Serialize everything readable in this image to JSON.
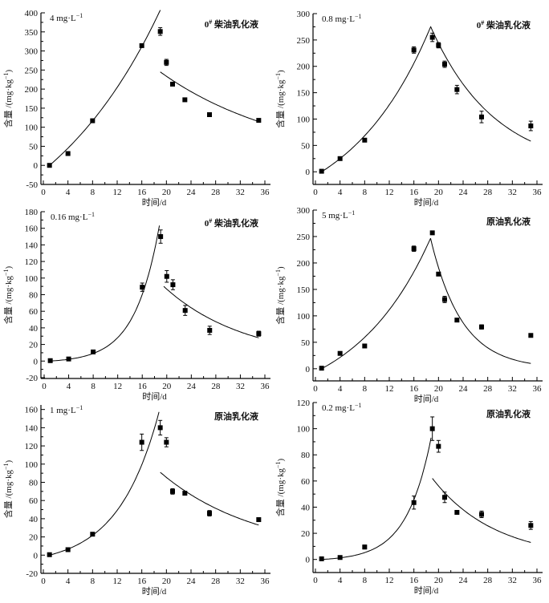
{
  "chart_data": [
    {
      "type": "scatter",
      "concentration": "4 mg·L",
      "concentration_exp": "−1",
      "emulsion": "0",
      "emulsion_sup": "#",
      "emulsion_name": " 柴油乳化液",
      "xlabel": "时间/d",
      "ylabel": "含量 /(mg·kg",
      "ylabel_exp": "−1",
      "ylabel_end": ")",
      "xlim": [
        0,
        36
      ],
      "xticks": [
        0,
        4,
        8,
        12,
        16,
        20,
        24,
        28,
        32,
        36
      ],
      "ylim": [
        -50,
        400
      ],
      "yticks": [
        -50,
        0,
        50,
        100,
        150,
        200,
        250,
        300,
        350,
        400
      ],
      "points": [
        {
          "x": 1,
          "y": 0,
          "err": 0
        },
        {
          "x": 4,
          "y": 31,
          "err": 0
        },
        {
          "x": 8,
          "y": 117,
          "err": 0
        },
        {
          "x": 16,
          "y": 314,
          "err": 0
        },
        {
          "x": 19,
          "y": 351,
          "err": 10
        },
        {
          "x": 20,
          "y": 270,
          "err": 8
        },
        {
          "x": 21,
          "y": 213,
          "err": 0
        },
        {
          "x": 23,
          "y": 172,
          "err": 0
        },
        {
          "x": 27,
          "y": 133,
          "err": 5
        },
        {
          "x": 35,
          "y": 118,
          "err": 0
        }
      ],
      "fit_uptake": {
        "a": 279,
        "k": 0.05,
        "t0": 1,
        "t_end": 19
      },
      "fit_depuration": {
        "c0": 245,
        "k": 0.0473,
        "t0": 19,
        "t_end": 35
      }
    },
    {
      "type": "scatter",
      "concentration": "0.8 mg·L",
      "concentration_exp": "−1",
      "emulsion": "0",
      "emulsion_sup": "#",
      "emulsion_name": " 柴油乳化液",
      "xlabel": "时间/d",
      "ylabel": "含量 /(mg·kg",
      "ylabel_exp": "−1",
      "ylabel_end": ")",
      "xlim": [
        0,
        36
      ],
      "xticks": [
        0,
        4,
        8,
        12,
        16,
        20,
        24,
        28,
        32,
        36
      ],
      "ylim": [
        -24,
        300
      ],
      "yticks": [
        0,
        50,
        100,
        150,
        200,
        250,
        300
      ],
      "points": [
        {
          "x": 1,
          "y": 1,
          "err": 0
        },
        {
          "x": 4,
          "y": 25,
          "err": 0
        },
        {
          "x": 8,
          "y": 60,
          "err": 0
        },
        {
          "x": 16,
          "y": 231,
          "err": 6
        },
        {
          "x": 19,
          "y": 255,
          "err": 8
        },
        {
          "x": 20,
          "y": 240,
          "err": 5
        },
        {
          "x": 21,
          "y": 204,
          "err": 6
        },
        {
          "x": 23,
          "y": 156,
          "err": 8
        },
        {
          "x": 27,
          "y": 104,
          "err": 11
        },
        {
          "x": 35,
          "y": 87,
          "err": 9
        }
      ],
      "fit_uptake": {
        "a": 99,
        "k": 0.075,
        "t0": 1,
        "t_end": 18.7
      },
      "fit_depuration": {
        "c0": 276,
        "k": 0.0957,
        "t0": 18.7,
        "t_end": 35
      }
    },
    {
      "type": "scatter",
      "concentration": "0.16 mg·L",
      "concentration_exp": "−1",
      "emulsion": "0",
      "emulsion_sup": "#",
      "emulsion_name": " 柴油乳化液",
      "xlabel": "时间/d",
      "ylabel": "含量 /(mg·kg",
      "ylabel_exp": "−1",
      "ylabel_end": ")",
      "xlim": [
        0,
        36
      ],
      "xticks": [
        0,
        4,
        8,
        12,
        16,
        20,
        24,
        28,
        32,
        36
      ],
      "ylim": [
        -21,
        180
      ],
      "yticks": [
        -20,
        0,
        20,
        40,
        60,
        80,
        100,
        120,
        140,
        160,
        180
      ],
      "points": [
        {
          "x": 1,
          "y": 0.5,
          "err": 0
        },
        {
          "x": 4,
          "y": 2.5,
          "err": 0
        },
        {
          "x": 8,
          "y": 11,
          "err": 0
        },
        {
          "x": 16,
          "y": 89,
          "err": 5
        },
        {
          "x": 19,
          "y": 150,
          "err": 8
        },
        {
          "x": 20,
          "y": 102,
          "err": 7
        },
        {
          "x": 21,
          "y": 92,
          "err": 6
        },
        {
          "x": 23,
          "y": 61,
          "err": 6
        },
        {
          "x": 27,
          "y": 37,
          "err": 5
        },
        {
          "x": 35,
          "y": 33,
          "err": 3
        }
      ],
      "fit_uptake": {
        "a": 1.93,
        "k": 0.25,
        "t0": 1,
        "t_end": 18.8
      },
      "fit_depuration": {
        "c0": 90,
        "k": 0.0753,
        "t0": 19.5,
        "t_end": 35
      }
    },
    {
      "type": "scatter",
      "concentration": "5 mg·L",
      "concentration_exp": "−1",
      "emulsion": "",
      "emulsion_sup": "",
      "emulsion_name": "原油乳化液",
      "xlabel": "时间/d",
      "ylabel": "含量 /(mg·kg",
      "ylabel_exp": "−1",
      "ylabel_end": ")",
      "xlim": [
        0,
        36
      ],
      "xticks": [
        0,
        4,
        8,
        12,
        16,
        20,
        24,
        28,
        32,
        36
      ],
      "ylim": [
        -23,
        300
      ],
      "yticks": [
        0,
        50,
        100,
        150,
        200,
        250,
        300
      ],
      "points": [
        {
          "x": 1,
          "y": 1,
          "err": 0
        },
        {
          "x": 4,
          "y": 29,
          "err": 0
        },
        {
          "x": 8,
          "y": 43,
          "err": 0
        },
        {
          "x": 16,
          "y": 227,
          "err": 5
        },
        {
          "x": 19,
          "y": 257,
          "err": 0
        },
        {
          "x": 20,
          "y": 179,
          "err": 0
        },
        {
          "x": 21,
          "y": 131,
          "err": 6
        },
        {
          "x": 23,
          "y": 92,
          "err": 0
        },
        {
          "x": 27,
          "y": 79,
          "err": 4
        },
        {
          "x": 35,
          "y": 63,
          "err": 0
        }
      ],
      "fit_uptake": {
        "a": 79,
        "k": 0.08,
        "t0": 1,
        "t_end": 18.7
      },
      "fit_depuration": {
        "c0": 247,
        "k": 0.197,
        "t0": 18.7,
        "t_end": 35
      }
    },
    {
      "type": "scatter",
      "concentration": "1 mg·L",
      "concentration_exp": "−1",
      "emulsion": "",
      "emulsion_sup": "",
      "emulsion_name": "原油乳化液",
      "xlabel": "时间/d",
      "ylabel": "含量 /(mg·kg",
      "ylabel_exp": "−1",
      "ylabel_end": ")",
      "xlim": [
        0,
        36
      ],
      "xticks": [
        0,
        4,
        8,
        12,
        16,
        20,
        24,
        28,
        32,
        36
      ],
      "ylim": [
        -20,
        165
      ],
      "yticks": [
        -20,
        0,
        20,
        40,
        60,
        80,
        100,
        120,
        140,
        160
      ],
      "points": [
        {
          "x": 1,
          "y": 0.5,
          "err": 0
        },
        {
          "x": 4,
          "y": 6,
          "err": 0
        },
        {
          "x": 8,
          "y": 23,
          "err": 0
        },
        {
          "x": 16,
          "y": 124,
          "err": 9
        },
        {
          "x": 19,
          "y": 140,
          "err": 8
        },
        {
          "x": 20,
          "y": 124,
          "err": 5
        },
        {
          "x": 21,
          "y": 70,
          "err": 3
        },
        {
          "x": 23,
          "y": 68,
          "err": 0
        },
        {
          "x": 27,
          "y": 46,
          "err": 3
        },
        {
          "x": 35,
          "y": 39,
          "err": 0
        }
      ],
      "fit_uptake": {
        "a": 11.7,
        "k": 0.15,
        "t0": 1,
        "t_end": 18.8
      },
      "fit_depuration": {
        "c0": 91,
        "k": 0.0634,
        "t0": 19,
        "t_end": 35
      }
    },
    {
      "type": "scatter",
      "concentration": "0.2 mg·L",
      "concentration_exp": "−1",
      "emulsion": "",
      "emulsion_sup": "",
      "emulsion_name": "原油乳化液",
      "xlabel": "时间/d",
      "ylabel": "含量 /(mg·kg",
      "ylabel_exp": "−1",
      "ylabel_end": ")",
      "xlim": [
        0,
        36
      ],
      "xticks": [
        0,
        4,
        8,
        12,
        16,
        20,
        24,
        28,
        32,
        36
      ],
      "ylim": [
        -10,
        120
      ],
      "yticks": [
        0,
        20,
        40,
        60,
        80,
        100,
        120
      ],
      "points": [
        {
          "x": 1,
          "y": 0.5,
          "err": 0
        },
        {
          "x": 4,
          "y": 1.5,
          "err": 0
        },
        {
          "x": 8,
          "y": 9.5,
          "err": 1.5
        },
        {
          "x": 16,
          "y": 43.5,
          "err": 5
        },
        {
          "x": 19,
          "y": 100,
          "err": 9
        },
        {
          "x": 20,
          "y": 86.5,
          "err": 4.5
        },
        {
          "x": 21,
          "y": 47.5,
          "err": 4
        },
        {
          "x": 23,
          "y": 36,
          "err": 0
        },
        {
          "x": 27,
          "y": 34.5,
          "err": 2.5
        },
        {
          "x": 35,
          "y": 26,
          "err": 3
        }
      ],
      "fit_uptake": {
        "a": 1.1,
        "k": 0.25,
        "t0": 1,
        "t_end": 18.8
      },
      "fit_depuration": {
        "c0": 62,
        "k": 0.0976,
        "t0": 19,
        "t_end": 35
      }
    }
  ]
}
